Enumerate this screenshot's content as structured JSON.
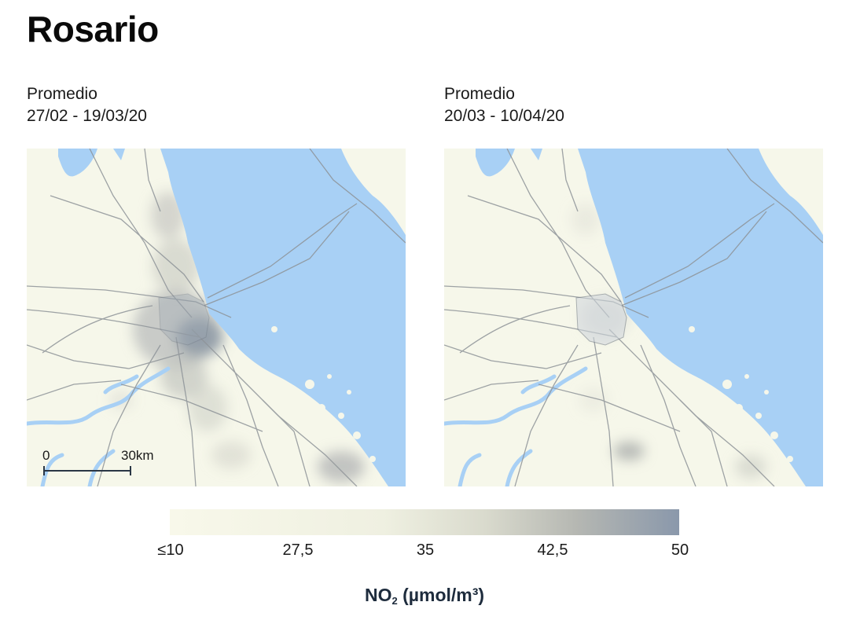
{
  "title": "Rosario",
  "panels": [
    {
      "label_line1": "Promedio",
      "label_line2": "27/02 - 19/03/20"
    },
    {
      "label_line1": "Promedio",
      "label_line2": "20/03 - 10/04/20"
    }
  ],
  "scale_bar": {
    "start_label": "0",
    "end_label": "30km"
  },
  "legend": {
    "ticks": [
      "≤10",
      "27,5",
      "35",
      "42,5",
      "50"
    ],
    "unit_main": "NO",
    "unit_sub": "2",
    "unit_rest": " (µmol/m³)",
    "colors": {
      "low": "#f8f8ea",
      "mid": "#dcdccf",
      "high": "#8a98ab"
    }
  },
  "map_colors": {
    "land": "#f6f7ea",
    "water": "#a8d0f5",
    "roads": "#8e9398",
    "urban": "#cfd6dc"
  }
}
